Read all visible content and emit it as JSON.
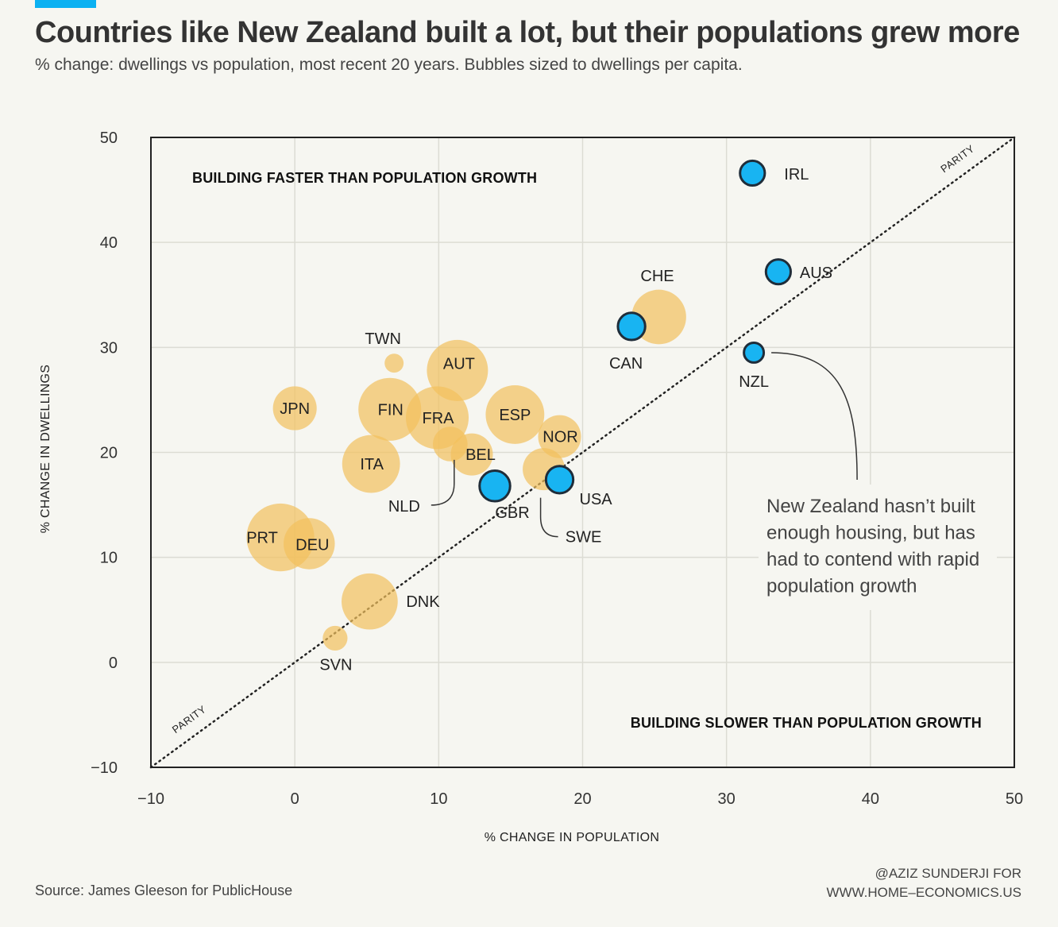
{
  "header": {
    "title": "Countries like New Zealand built a lot, but their populations grew more",
    "subtitle": "% change: dwellings vs population, most recent 20 years. Bubbles sized to dwellings per capita."
  },
  "footer": {
    "source": "Source: James Gleeson for PublicHouse",
    "credit_line1": "@AZIZ SUNDERJI FOR",
    "credit_line2": "WWW.HOME–ECONOMICS.US"
  },
  "colors": {
    "accent": "#0bb1f2",
    "highlight": "#18b4f2",
    "other": "#f2c15c",
    "background": "#f6f6f1"
  },
  "chart_data": {
    "type": "scatter",
    "title": "Countries like New Zealand built a lot, but their populations grew more",
    "subtitle": "% change: dwellings vs population, most recent 20 years. Bubbles sized to dwellings per capita.",
    "xlabel": "% CHANGE IN POPULATION",
    "ylabel": "% CHANGE IN DWELLINGS",
    "xlim": [
      -10,
      50
    ],
    "ylim": [
      -10,
      50
    ],
    "xticks": [
      -10,
      0,
      10,
      20,
      30,
      40,
      50
    ],
    "yticks": [
      -10,
      0,
      10,
      20,
      30,
      40,
      50
    ],
    "xtick_labels": [
      "−10",
      "0",
      "10",
      "20",
      "30",
      "40",
      "50"
    ],
    "ytick_labels": [
      "−10",
      "0",
      "10",
      "20",
      "30",
      "40",
      "50"
    ],
    "grid": true,
    "quadrant_labels": {
      "upper": "BUILDING FASTER THAN POPULATION GROWTH",
      "lower": "BUILDING SLOWER THAN POPULATION GROWTH"
    },
    "parity_line": {
      "label": "PARITY",
      "from": [
        -10,
        -10
      ],
      "to": [
        50,
        50
      ]
    },
    "annotation": {
      "target": "NZL",
      "lines": [
        "New Zealand hasn’t built",
        "enough housing, but has",
        "had to contend with rapid",
        "population growth"
      ]
    },
    "points": [
      {
        "label": "IRL",
        "x": 31.8,
        "y": 46.6,
        "size": 0.3,
        "highlight": true
      },
      {
        "label": "AUS",
        "x": 33.6,
        "y": 37.2,
        "size": 0.3,
        "highlight": true
      },
      {
        "label": "NZL",
        "x": 31.9,
        "y": 29.5,
        "size": 0.24,
        "highlight": true
      },
      {
        "label": "CAN",
        "x": 23.4,
        "y": 32.0,
        "size": 0.33,
        "highlight": true
      },
      {
        "label": "USA",
        "x": 18.4,
        "y": 17.4,
        "size": 0.33,
        "highlight": true
      },
      {
        "label": "GBR",
        "x": 13.9,
        "y": 16.8,
        "size": 0.37,
        "highlight": true
      },
      {
        "label": "CHE",
        "x": 25.3,
        "y": 32.9,
        "size": 0.66,
        "highlight": false
      },
      {
        "label": "AUT",
        "x": 11.3,
        "y": 27.8,
        "size": 0.74,
        "highlight": false
      },
      {
        "label": "ESP",
        "x": 15.3,
        "y": 23.6,
        "size": 0.71,
        "highlight": false
      },
      {
        "label": "FIN",
        "x": 6.6,
        "y": 24.1,
        "size": 0.76,
        "highlight": false
      },
      {
        "label": "FRA",
        "x": 9.9,
        "y": 23.3,
        "size": 0.76,
        "highlight": false
      },
      {
        "label": "NOR",
        "x": 18.4,
        "y": 21.5,
        "size": 0.52,
        "highlight": false
      },
      {
        "label": "NLD",
        "x": 10.8,
        "y": 20.8,
        "size": 0.42,
        "highlight": false
      },
      {
        "label": "BEL",
        "x": 12.3,
        "y": 19.8,
        "size": 0.51,
        "highlight": false
      },
      {
        "label": "SWE",
        "x": 17.3,
        "y": 18.4,
        "size": 0.51,
        "highlight": false
      },
      {
        "label": "ITA",
        "x": 5.3,
        "y": 18.9,
        "size": 0.7,
        "highlight": false
      },
      {
        "label": "JPN",
        "x": 0.0,
        "y": 24.2,
        "size": 0.53,
        "highlight": false
      },
      {
        "label": "TWN",
        "x": 6.9,
        "y": 28.5,
        "size": 0.23,
        "highlight": false
      },
      {
        "label": "PRT",
        "x": -1.0,
        "y": 11.9,
        "size": 0.82,
        "highlight": false
      },
      {
        "label": "DEU",
        "x": 1.0,
        "y": 11.3,
        "size": 0.62,
        "highlight": false
      },
      {
        "label": "DNK",
        "x": 5.2,
        "y": 5.8,
        "size": 0.68,
        "highlight": false
      },
      {
        "label": "SVN",
        "x": 2.8,
        "y": 2.3,
        "size": 0.3,
        "highlight": false
      }
    ]
  }
}
